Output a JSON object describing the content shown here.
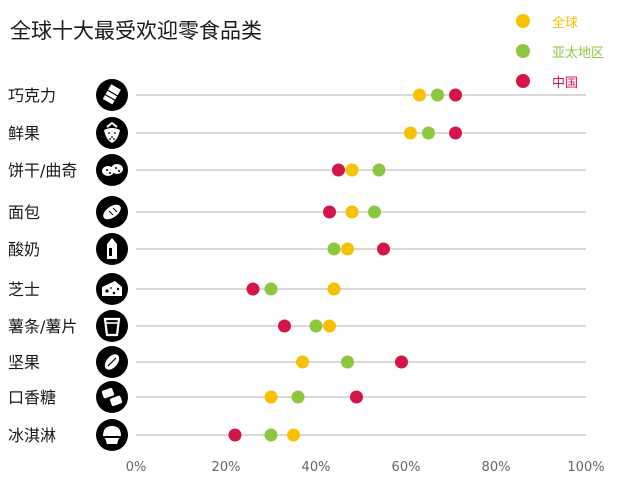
{
  "chart_data": {
    "type": "scatter",
    "title": "全球十大最受欢迎零食品类",
    "categories": [
      "巧克力",
      "鲜果",
      "饼干/曲奇",
      "面包",
      "酸奶",
      "芝士",
      "薯条/薯片",
      "坚果",
      "口香糖",
      "冰淇淋"
    ],
    "icons": [
      "chocolate-bar-icon",
      "strawberry-icon",
      "cookies-icon",
      "bread-icon",
      "yogurt-carton-icon",
      "cheese-icon",
      "chips-cup-icon",
      "nut-icon",
      "chewing-gum-icon",
      "ice-cream-icon"
    ],
    "series": [
      {
        "name": "全球",
        "color": "#F6C200",
        "values": [
          63,
          61,
          48,
          48,
          47,
          44,
          43,
          37,
          30,
          35
        ]
      },
      {
        "name": "亚太地区",
        "color": "#8DC63F",
        "values": [
          67,
          65,
          54,
          53,
          44,
          30,
          40,
          47,
          36,
          30
        ]
      },
      {
        "name": "中国",
        "color": "#D4154A",
        "values": [
          71,
          71,
          45,
          43,
          55,
          26,
          33,
          59,
          49,
          22
        ]
      }
    ],
    "x_ticks": [
      "0%",
      "20%",
      "40%",
      "60%",
      "80%",
      "100%"
    ],
    "xlim": [
      0,
      100
    ],
    "legend_position": "top-right"
  }
}
